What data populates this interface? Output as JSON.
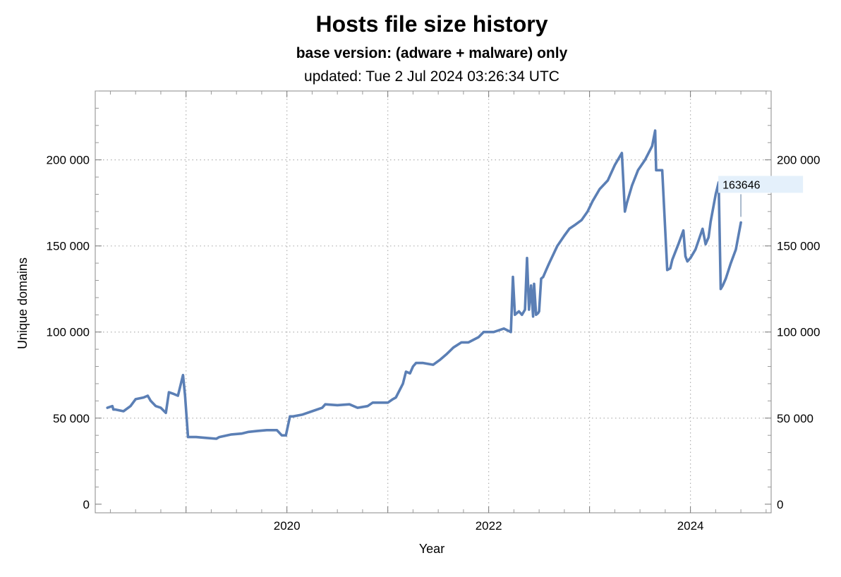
{
  "chart_data": {
    "type": "line",
    "title": "Hosts file size history",
    "subtitle": "base version: (adware + malware) only",
    "updated": "updated: Tue 2 Jul 2024 03:26:34 UTC",
    "xlabel": "Year",
    "ylabel": "Unique domains",
    "xlim": [
      2018.1,
      2024.8
    ],
    "ylim": [
      -5000,
      240000
    ],
    "x_ticks": [
      {
        "value": 2020,
        "label": "2020"
      },
      {
        "value": 2022,
        "label": "2022"
      },
      {
        "value": 2024,
        "label": "2024"
      }
    ],
    "y_ticks": [
      {
        "value": 0,
        "label": "0"
      },
      {
        "value": 50000,
        "label": "50 000"
      },
      {
        "value": 100000,
        "label": "100 000"
      },
      {
        "value": 150000,
        "label": "150 000"
      },
      {
        "value": 200000,
        "label": "200 000"
      }
    ],
    "x_gridlines": [
      2019,
      2020,
      2021,
      2022,
      2023,
      2024
    ],
    "grid": true,
    "color": "#5b7fb5",
    "callout": {
      "label": "163646",
      "x": 2024.5,
      "y": 163646
    },
    "series": [
      {
        "x": [
          2018.22,
          2018.27,
          2018.28,
          2018.3,
          2018.38,
          2018.45,
          2018.5,
          2018.58,
          2018.62,
          2018.65,
          2018.7,
          2018.75,
          2018.8,
          2018.83,
          2018.88,
          2018.92,
          2018.97,
          2018.99,
          2019.02,
          2019.05,
          2019.1,
          2019.2,
          2019.3,
          2019.33,
          2019.45,
          2019.55,
          2019.62,
          2019.7,
          2019.8,
          2019.9,
          2019.95,
          2019.99,
          2020.03,
          2020.06,
          2020.15,
          2020.25,
          2020.35,
          2020.38,
          2020.5,
          2020.62,
          2020.7,
          2020.8,
          2020.85,
          2020.9,
          2021.0,
          2021.05,
          2021.08,
          2021.15,
          2021.18,
          2021.22,
          2021.25,
          2021.28,
          2021.35,
          2021.45,
          2021.52,
          2021.58,
          2021.65,
          2021.73,
          2021.8,
          2021.9,
          2021.95,
          2022.05,
          2022.15,
          2022.22,
          2022.24,
          2022.26,
          2022.3,
          2022.33,
          2022.36,
          2022.38,
          2022.4,
          2022.42,
          2022.44,
          2022.45,
          2022.47,
          2022.49,
          2022.5,
          2022.52,
          2022.54,
          2022.57,
          2022.6,
          2022.68,
          2022.75,
          2022.8,
          2022.85,
          2022.92,
          2022.98,
          2023.03,
          2023.1,
          2023.18,
          2023.25,
          2023.32,
          2023.35,
          2023.37,
          2023.42,
          2023.48,
          2023.55,
          2023.62,
          2023.65,
          2023.66,
          2023.69,
          2023.72,
          2023.77,
          2023.8,
          2023.82,
          2023.88,
          2023.93,
          2023.95,
          2023.97,
          2024.0,
          2024.05,
          2024.12,
          2024.15,
          2024.18,
          2024.2,
          2024.25,
          2024.28,
          2024.3,
          2024.32,
          2024.35,
          2024.4,
          2024.45,
          2024.5
        ],
        "y": [
          56000,
          57000,
          55000,
          55000,
          54000,
          57000,
          61000,
          62000,
          63000,
          60000,
          57000,
          56000,
          53000,
          65000,
          64000,
          63000,
          75000,
          63000,
          39000,
          39000,
          39000,
          38500,
          38000,
          39000,
          40500,
          41000,
          42000,
          42500,
          43000,
          43000,
          40000,
          40000,
          51000,
          51000,
          52000,
          54000,
          56000,
          58000,
          57500,
          58000,
          56000,
          57000,
          59000,
          59000,
          59000,
          61000,
          62000,
          70000,
          77000,
          76000,
          80000,
          82000,
          82000,
          81000,
          84000,
          87000,
          91000,
          94000,
          94000,
          97000,
          100000,
          100000,
          102000,
          100000,
          132000,
          110000,
          112000,
          110000,
          113000,
          143000,
          113000,
          127000,
          109000,
          128000,
          110000,
          111000,
          112000,
          131000,
          132000,
          136000,
          140000,
          150000,
          156000,
          160000,
          162000,
          165000,
          170000,
          176000,
          183000,
          188000,
          197000,
          204000,
          170000,
          175000,
          185000,
          194000,
          200000,
          208000,
          217000,
          194000,
          194000,
          194000,
          136000,
          137000,
          142000,
          151000,
          159000,
          144000,
          141000,
          143000,
          148000,
          160000,
          151000,
          155000,
          164000,
          180000,
          187000,
          125000,
          127000,
          131000,
          140000,
          148000,
          163646
        ]
      }
    ]
  }
}
